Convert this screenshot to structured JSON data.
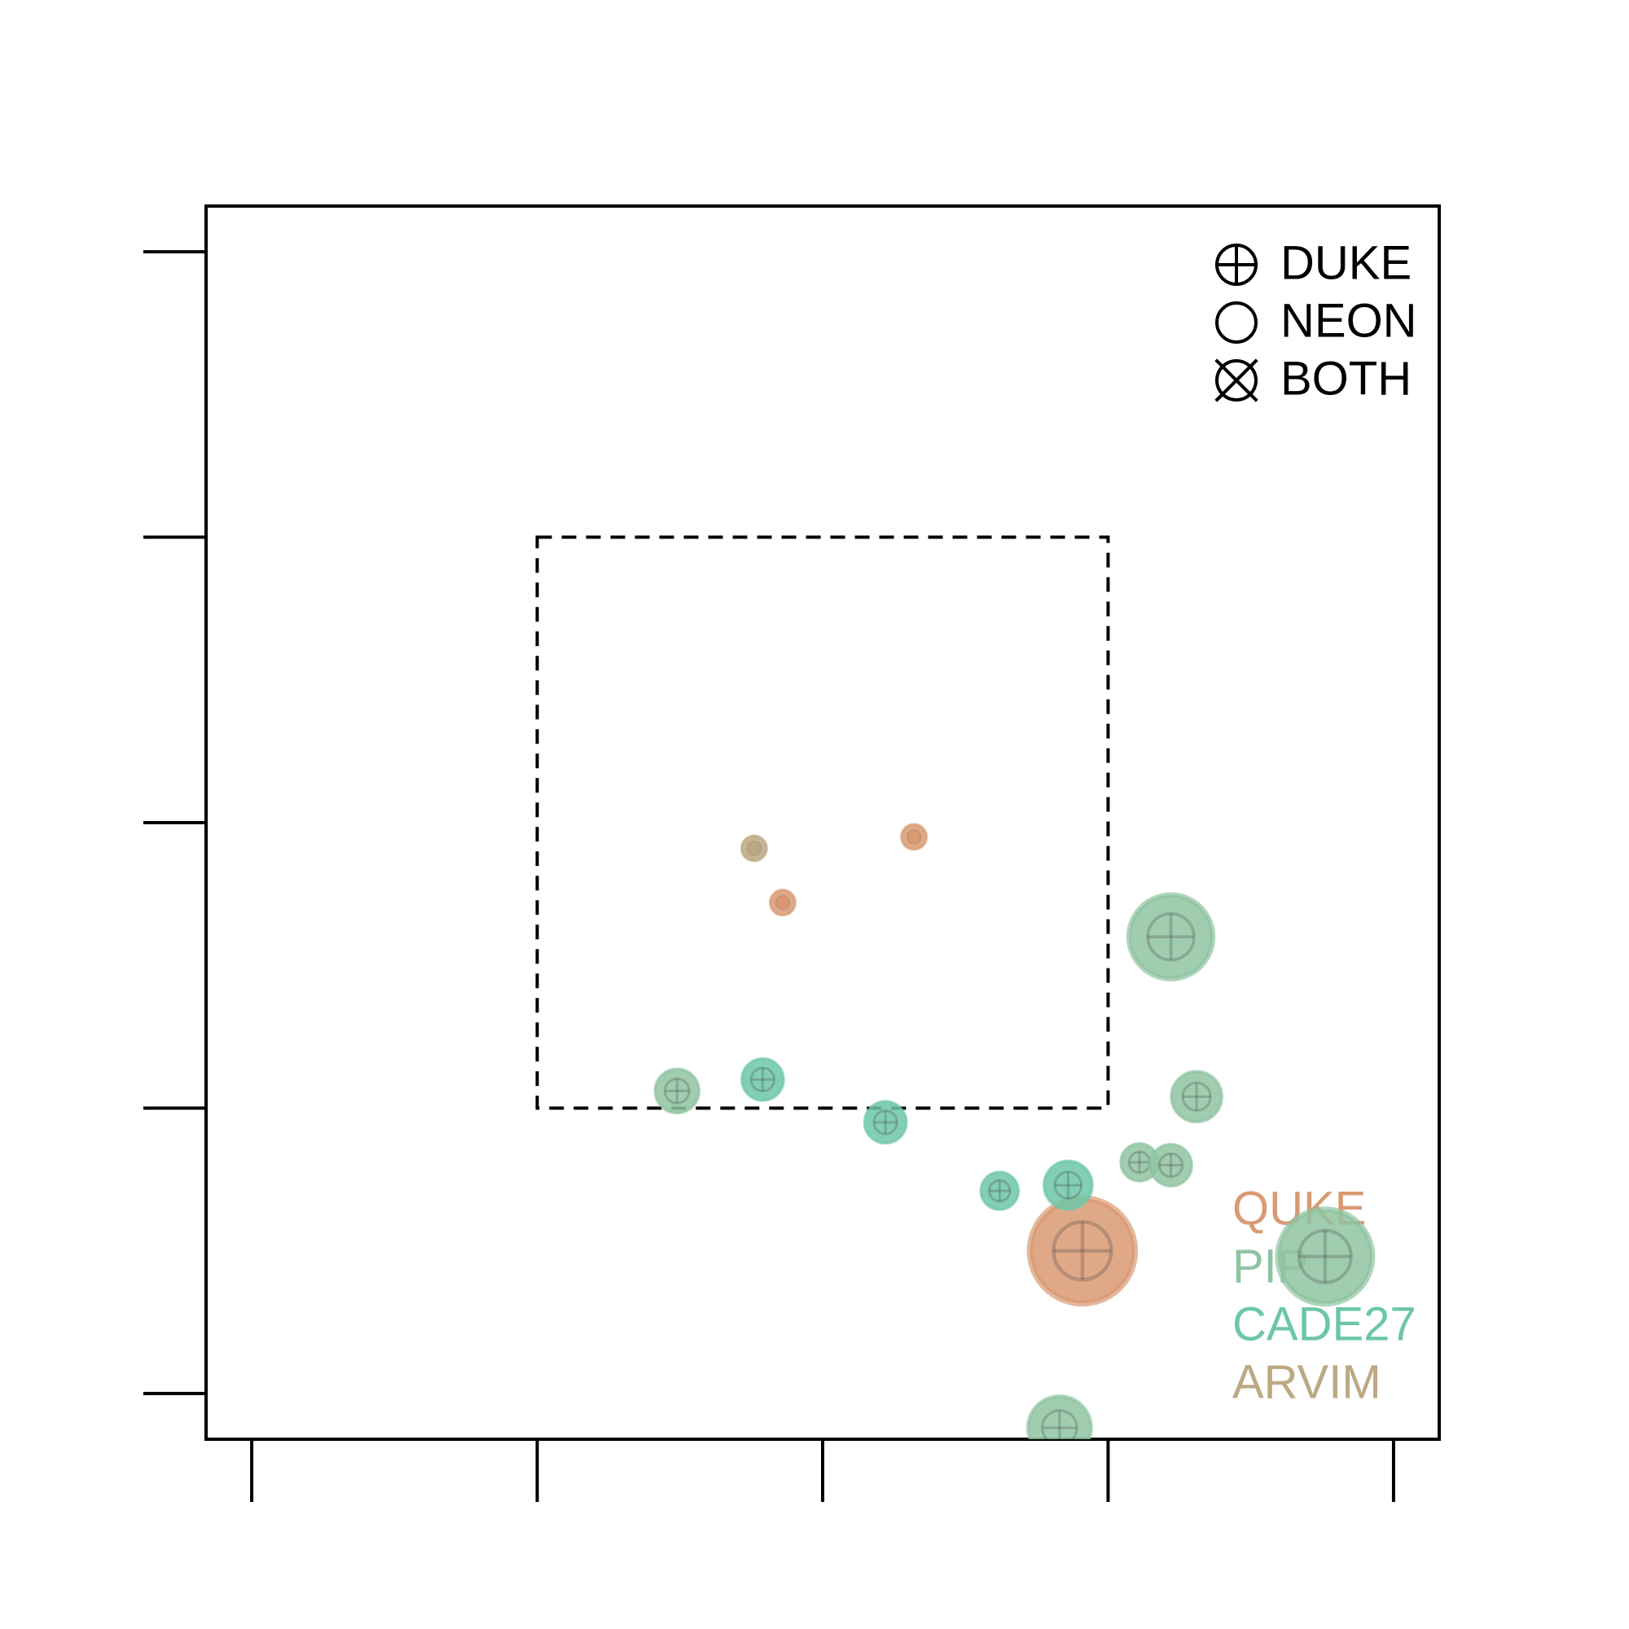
{
  "chart_data": {
    "type": "scatter",
    "xlim": [
      -2.16,
      2.16
    ],
    "ylim": [
      -2.16,
      2.16
    ],
    "xticks": [
      -2,
      -1,
      0,
      1,
      2
    ],
    "yticks": [
      -2,
      -1,
      0,
      1,
      2
    ],
    "region": {
      "xlim": [
        -1,
        1
      ],
      "ylim": [
        -1,
        1
      ]
    },
    "shape_legend": [
      "DUKE",
      "NEON",
      "BOTH"
    ],
    "series": [
      {
        "name": "QUKE",
        "color": "#d99a73",
        "x": [
          0.32,
          -0.14,
          0.91
        ],
        "y": [
          -0.05,
          -0.28,
          -1.5
        ],
        "sizes": [
          12,
          12,
          50
        ],
        "shapes": [
          "NEON",
          "NEON",
          "DUKE"
        ]
      },
      {
        "name": "PIP",
        "color": "#8fc3a1",
        "x": [
          -0.51,
          1.22,
          1.31,
          1.11,
          1.22,
          1.76,
          0.83
        ],
        "y": [
          -0.94,
          -0.4,
          -0.96,
          -1.19,
          -1.2,
          -1.52,
          -2.12
        ],
        "sizes": [
          21,
          40,
          24,
          18,
          20,
          45,
          30
        ],
        "shapes": [
          "DUKE",
          "DUKE",
          "DUKE",
          "DUKE",
          "DUKE",
          "DUKE",
          "DUKE"
        ]
      },
      {
        "name": "CADE27",
        "color": "#6cc7a7",
        "x": [
          -0.21,
          0.22,
          0.62,
          0.86
        ],
        "y": [
          -0.9,
          -1.05,
          -1.29,
          -1.27
        ],
        "sizes": [
          20,
          20,
          18,
          23
        ],
        "shapes": [
          "DUKE",
          "DUKE",
          "DUKE",
          "DUKE"
        ]
      },
      {
        "name": "ARVIM",
        "color": "#bca882",
        "x": [
          -0.24
        ],
        "y": [
          -0.09
        ],
        "sizes": [
          12
        ],
        "shapes": [
          "NEON"
        ]
      }
    ]
  }
}
